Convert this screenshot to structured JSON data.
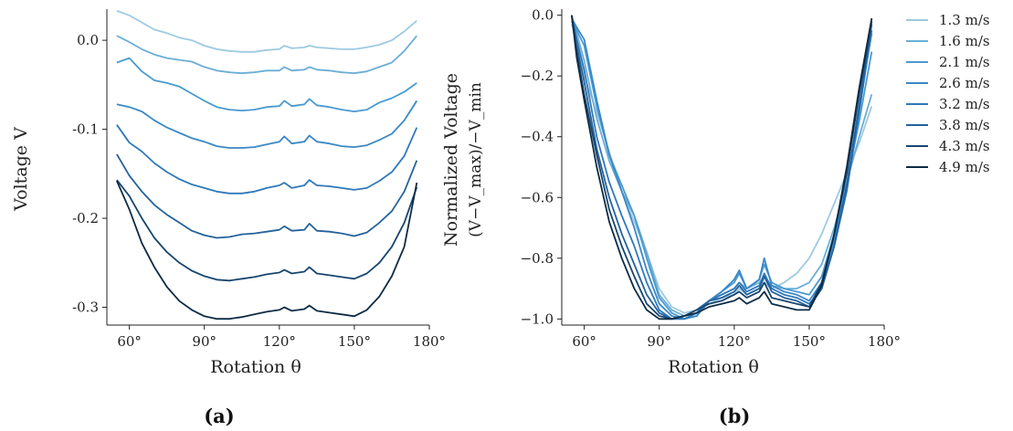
{
  "chart_data": [
    {
      "type": "line",
      "caption": "(a)",
      "xlabel": "Rotation θ",
      "ylabel": "Voltage V",
      "xlim": [
        51,
        180
      ],
      "ylim": [
        -0.32,
        0.035
      ],
      "xticks": [
        60,
        90,
        120,
        150,
        180
      ],
      "xtick_labels": [
        "60°",
        "90°",
        "120°",
        "150°",
        "180°"
      ],
      "yticks": [
        0.0,
        -0.1,
        -0.2,
        -0.3
      ],
      "ytick_labels": [
        "0.0",
        "-0.1",
        "-0.2",
        "-0.3"
      ],
      "x": [
        55,
        60,
        65,
        70,
        75,
        80,
        85,
        90,
        95,
        100,
        105,
        110,
        115,
        120,
        122,
        125,
        130,
        132,
        135,
        140,
        145,
        150,
        155,
        160,
        165,
        170,
        175
      ],
      "series": [
        {
          "name": "1.3 m/s",
          "color": "#9ecae1",
          "values": [
            0.033,
            0.028,
            0.02,
            0.012,
            0.008,
            0.003,
            0.0,
            -0.006,
            -0.01,
            -0.012,
            -0.013,
            -0.013,
            -0.011,
            -0.01,
            -0.006,
            -0.009,
            -0.008,
            -0.006,
            -0.008,
            -0.009,
            -0.01,
            -0.01,
            -0.008,
            -0.005,
            0.0,
            0.01,
            0.022
          ]
        },
        {
          "name": "1.6 m/s",
          "color": "#6baed6",
          "values": [
            0.005,
            -0.002,
            -0.01,
            -0.016,
            -0.02,
            -0.022,
            -0.024,
            -0.03,
            -0.034,
            -0.036,
            -0.037,
            -0.036,
            -0.034,
            -0.034,
            -0.03,
            -0.034,
            -0.033,
            -0.03,
            -0.033,
            -0.034,
            -0.036,
            -0.037,
            -0.035,
            -0.03,
            -0.025,
            -0.012,
            0.005
          ]
        },
        {
          "name": "2.1 m/s",
          "color": "#4a9ad0",
          "values": [
            -0.025,
            -0.02,
            -0.035,
            -0.045,
            -0.048,
            -0.052,
            -0.06,
            -0.068,
            -0.075,
            -0.078,
            -0.079,
            -0.078,
            -0.075,
            -0.074,
            -0.068,
            -0.074,
            -0.072,
            -0.066,
            -0.073,
            -0.075,
            -0.078,
            -0.08,
            -0.078,
            -0.07,
            -0.065,
            -0.058,
            -0.048
          ]
        },
        {
          "name": "2.6 m/s",
          "color": "#3a88c6",
          "values": [
            -0.072,
            -0.075,
            -0.08,
            -0.09,
            -0.098,
            -0.104,
            -0.11,
            -0.114,
            -0.119,
            -0.121,
            -0.121,
            -0.12,
            -0.117,
            -0.114,
            -0.108,
            -0.116,
            -0.114,
            -0.107,
            -0.114,
            -0.116,
            -0.119,
            -0.12,
            -0.118,
            -0.112,
            -0.105,
            -0.09,
            -0.068
          ]
        },
        {
          "name": "3.2 m/s",
          "color": "#2f79bb",
          "values": [
            -0.095,
            -0.115,
            -0.125,
            -0.138,
            -0.148,
            -0.156,
            -0.162,
            -0.166,
            -0.17,
            -0.172,
            -0.172,
            -0.17,
            -0.166,
            -0.163,
            -0.16,
            -0.166,
            -0.163,
            -0.157,
            -0.163,
            -0.164,
            -0.166,
            -0.168,
            -0.166,
            -0.158,
            -0.148,
            -0.13,
            -0.098
          ]
        },
        {
          "name": "3.8 m/s",
          "color": "#24629c",
          "values": [
            -0.128,
            -0.152,
            -0.17,
            -0.185,
            -0.196,
            -0.205,
            -0.214,
            -0.219,
            -0.222,
            -0.221,
            -0.218,
            -0.217,
            -0.215,
            -0.213,
            -0.209,
            -0.214,
            -0.213,
            -0.206,
            -0.214,
            -0.215,
            -0.217,
            -0.22,
            -0.216,
            -0.205,
            -0.192,
            -0.17,
            -0.135
          ]
        },
        {
          "name": "4.3 m/s",
          "color": "#17466f",
          "values": [
            -0.157,
            -0.175,
            -0.2,
            -0.222,
            -0.238,
            -0.25,
            -0.259,
            -0.265,
            -0.269,
            -0.27,
            -0.268,
            -0.266,
            -0.263,
            -0.261,
            -0.258,
            -0.262,
            -0.26,
            -0.255,
            -0.262,
            -0.264,
            -0.266,
            -0.268,
            -0.262,
            -0.25,
            -0.232,
            -0.205,
            -0.165
          ]
        },
        {
          "name": "4.9 m/s",
          "color": "#0d2b45",
          "values": [
            -0.158,
            -0.19,
            -0.228,
            -0.255,
            -0.277,
            -0.293,
            -0.303,
            -0.31,
            -0.313,
            -0.313,
            -0.311,
            -0.308,
            -0.305,
            -0.303,
            -0.3,
            -0.304,
            -0.302,
            -0.298,
            -0.304,
            -0.306,
            -0.308,
            -0.31,
            -0.303,
            -0.288,
            -0.265,
            -0.232,
            -0.16
          ]
        }
      ]
    },
    {
      "type": "line",
      "caption": "(b)",
      "xlabel": "Rotation θ",
      "ylabel": "Normalized Voltage",
      "ylabel2": "(V−V_max)/−V_min",
      "xlim": [
        51,
        180
      ],
      "ylim": [
        -1.02,
        0.02
      ],
      "xticks": [
        60,
        90,
        120,
        150,
        180
      ],
      "xtick_labels": [
        "60°",
        "90°",
        "120°",
        "150°",
        "180°"
      ],
      "yticks": [
        0.0,
        -0.2,
        -0.4,
        -0.6,
        -0.8,
        -1.0
      ],
      "ytick_labels": [
        "0.0",
        "−0.2",
        "−0.4",
        "−0.6",
        "−0.8",
        "−1.0"
      ],
      "legend_position": "right",
      "x": [
        55,
        57,
        60,
        65,
        70,
        75,
        80,
        85,
        90,
        95,
        100,
        105,
        110,
        115,
        120,
        122,
        125,
        130,
        132,
        135,
        140,
        145,
        150,
        155,
        160,
        165,
        170,
        175
      ],
      "series": [
        {
          "name": "1.3 m/s",
          "color": "#9ecae1",
          "values": [
            -0.03,
            -0.08,
            -0.2,
            -0.32,
            -0.45,
            -0.58,
            -0.68,
            -0.78,
            -0.9,
            -0.96,
            -0.98,
            -0.97,
            -0.95,
            -0.93,
            -0.92,
            -0.9,
            -0.92,
            -0.9,
            -0.88,
            -0.9,
            -0.88,
            -0.85,
            -0.8,
            -0.72,
            -0.62,
            -0.52,
            -0.42,
            -0.3
          ]
        },
        {
          "name": "1.6 m/s",
          "color": "#6baed6",
          "values": [
            -0.02,
            -0.06,
            -0.15,
            -0.34,
            -0.48,
            -0.58,
            -0.66,
            -0.78,
            -0.92,
            -0.97,
            -0.99,
            -0.98,
            -0.94,
            -0.92,
            -0.9,
            -0.88,
            -0.9,
            -0.88,
            -0.86,
            -0.89,
            -0.9,
            -0.9,
            -0.88,
            -0.82,
            -0.7,
            -0.55,
            -0.4,
            -0.26
          ]
        },
        {
          "name": "2.1 m/s",
          "color": "#4a9ad0",
          "values": [
            -0.02,
            -0.05,
            -0.1,
            -0.3,
            -0.46,
            -0.56,
            -0.66,
            -0.8,
            -0.93,
            -0.98,
            -1.0,
            -0.99,
            -0.94,
            -0.91,
            -0.88,
            -0.85,
            -0.9,
            -0.87,
            -0.82,
            -0.88,
            -0.9,
            -0.91,
            -0.92,
            -0.86,
            -0.72,
            -0.55,
            -0.35,
            -0.12
          ]
        },
        {
          "name": "2.6 m/s",
          "color": "#3a88c6",
          "values": [
            -0.01,
            -0.04,
            -0.08,
            -0.28,
            -0.46,
            -0.58,
            -0.7,
            -0.84,
            -0.95,
            -0.99,
            -1.0,
            -0.99,
            -0.94,
            -0.91,
            -0.87,
            -0.84,
            -0.9,
            -0.87,
            -0.8,
            -0.89,
            -0.91,
            -0.92,
            -0.94,
            -0.88,
            -0.74,
            -0.56,
            -0.3,
            -0.06
          ]
        },
        {
          "name": "3.2 m/s",
          "color": "#2f79bb",
          "values": [
            0.0,
            -0.08,
            -0.18,
            -0.4,
            -0.55,
            -0.66,
            -0.76,
            -0.88,
            -0.97,
            -1.0,
            -1.0,
            -0.98,
            -0.94,
            -0.92,
            -0.9,
            -0.88,
            -0.91,
            -0.89,
            -0.85,
            -0.9,
            -0.92,
            -0.93,
            -0.95,
            -0.9,
            -0.76,
            -0.58,
            -0.32,
            -0.05
          ]
        },
        {
          "name": "3.8 m/s",
          "color": "#24629c",
          "values": [
            0.0,
            -0.1,
            -0.22,
            -0.44,
            -0.6,
            -0.72,
            -0.82,
            -0.92,
            -0.98,
            -1.0,
            -0.99,
            -0.97,
            -0.94,
            -0.93,
            -0.91,
            -0.89,
            -0.92,
            -0.9,
            -0.86,
            -0.91,
            -0.93,
            -0.94,
            -0.96,
            -0.9,
            -0.76,
            -0.56,
            -0.3,
            -0.03
          ]
        },
        {
          "name": "4.3 m/s",
          "color": "#17466f",
          "values": [
            0.0,
            -0.12,
            -0.26,
            -0.46,
            -0.64,
            -0.76,
            -0.86,
            -0.95,
            -0.99,
            -1.0,
            -0.99,
            -0.97,
            -0.95,
            -0.94,
            -0.92,
            -0.91,
            -0.93,
            -0.91,
            -0.88,
            -0.93,
            -0.94,
            -0.95,
            -0.96,
            -0.88,
            -0.72,
            -0.52,
            -0.26,
            -0.02
          ]
        },
        {
          "name": "4.9 m/s",
          "color": "#0d2b45",
          "values": [
            0.0,
            -0.14,
            -0.28,
            -0.5,
            -0.68,
            -0.8,
            -0.9,
            -0.97,
            -1.0,
            -1.0,
            -0.99,
            -0.98,
            -0.96,
            -0.95,
            -0.94,
            -0.93,
            -0.95,
            -0.93,
            -0.91,
            -0.95,
            -0.96,
            -0.97,
            -0.97,
            -0.89,
            -0.72,
            -0.5,
            -0.24,
            -0.01
          ]
        }
      ]
    }
  ]
}
